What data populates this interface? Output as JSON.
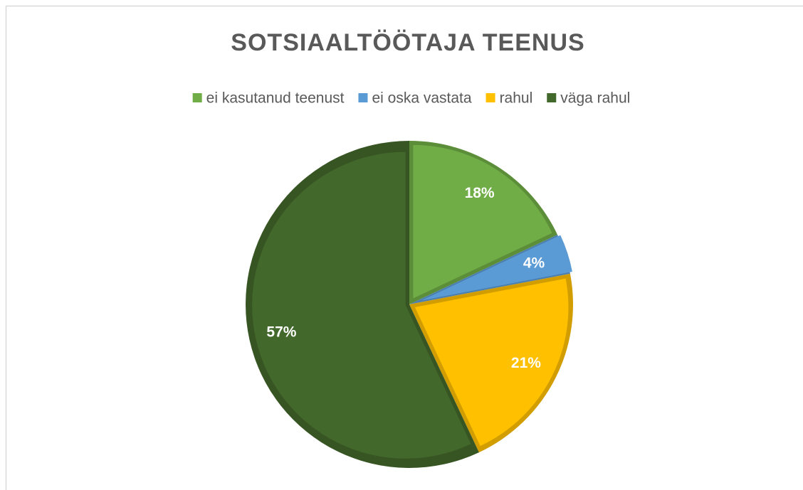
{
  "chart_data": {
    "type": "pie",
    "title": "SOTSIAALTÖÖTAJA TEENUS",
    "categories": [
      "ei kasutanud teenust",
      "ei oska vastata",
      "rahul",
      "väga rahul"
    ],
    "values": [
      18,
      4,
      21,
      57
    ],
    "value_labels": [
      "18%",
      "4%",
      "21%",
      "57%"
    ],
    "colors": [
      "#70ad47",
      "#5b9bd5",
      "#ffc000",
      "#43682b"
    ],
    "legend": "top"
  }
}
